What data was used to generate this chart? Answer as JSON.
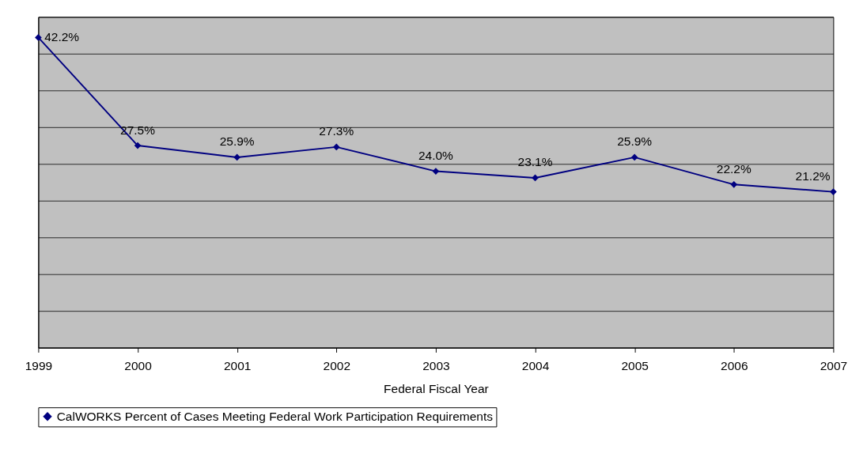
{
  "chart_data": {
    "type": "line",
    "xlabel": "Federal Fiscal Year",
    "categories": [
      "1999",
      "2000",
      "2001",
      "2002",
      "2003",
      "2004",
      "2005",
      "2006",
      "2007"
    ],
    "series": [
      {
        "name": "CalWORKS Percent of Cases Meeting Federal Work Participation Requirements",
        "color": "#000080",
        "values": [
          42.2,
          27.5,
          25.9,
          27.3,
          24.0,
          23.1,
          25.9,
          22.2,
          21.2
        ],
        "value_labels": [
          "42.2%",
          "27.5%",
          "25.9%",
          "27.3%",
          "24.0%",
          "23.1%",
          "25.9%",
          "22.2%",
          "21.2%"
        ]
      }
    ],
    "ylim": [
      0,
      45
    ],
    "yticks": [
      {
        "value": 0,
        "label": null
      },
      {
        "value": 5,
        "label": null
      },
      {
        "value": 10,
        "label": null
      },
      {
        "value": 15,
        "label": null
      },
      {
        "value": 20,
        "label": null
      },
      {
        "value": 25,
        "label": null
      },
      {
        "value": 30,
        "label": null
      },
      {
        "value": 35,
        "label": null
      },
      {
        "value": 40,
        "label": null
      },
      {
        "value": 45,
        "label": null
      }
    ],
    "grid": "y",
    "legend": "bottom",
    "marker": "diamond",
    "line_style": "solid",
    "tick_labels": "x"
  }
}
